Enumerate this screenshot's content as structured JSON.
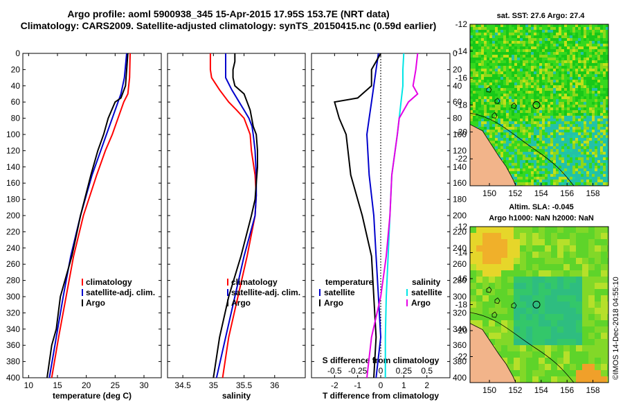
{
  "title": {
    "line1": "Argo profile: aoml 5900938_345 15-Apr-2015 17.95S 153.7E (NRT data)",
    "line2": "Climatology: CARS2009. Satellite-adjusted climatology: synTS_20150415.nc (0.59d earlier)"
  },
  "colors": {
    "climatology": "#ff0000",
    "satellite": "#0000cc",
    "argo": "#000000",
    "t_sat": "#00e5e5",
    "s_argo": "#e500e5",
    "s_sat": "#00e5e5"
  },
  "depth_ticks": [
    "0",
    "20",
    "40",
    "60",
    "80",
    "100",
    "120",
    "140",
    "160",
    "180",
    "200",
    "220",
    "240",
    "260",
    "280",
    "300",
    "320",
    "340",
    "360",
    "380",
    "400"
  ],
  "chart_data": [
    {
      "type": "line",
      "name": "temperature",
      "xlabel": "temperature (deg C)",
      "ylabel": "",
      "xlim": [
        9,
        33
      ],
      "ylim": [
        400,
        0
      ],
      "xticks": [
        "10",
        "15",
        "20",
        "25",
        "30"
      ],
      "legend": [
        "climatology",
        "satellite-adj. clim.",
        "Argo"
      ],
      "series": [
        {
          "name": "climatology",
          "depth": [
            0,
            30,
            50,
            60,
            80,
            100,
            120,
            150,
            200,
            250,
            300,
            350,
            400
          ],
          "values": [
            27.6,
            27.5,
            27.2,
            26.5,
            25.5,
            24.5,
            23.3,
            21.8,
            19.5,
            17.8,
            16.5,
            15.2,
            14.0
          ]
        },
        {
          "name": "satellite-adj. clim.",
          "depth": [
            0,
            30,
            50,
            60,
            80,
            100,
            120,
            150,
            200,
            250,
            300,
            350,
            400
          ],
          "values": [
            27.0,
            26.6,
            26.0,
            25.5,
            24.5,
            23.5,
            22.5,
            21.0,
            19.0,
            17.3,
            16.0,
            14.8,
            13.6
          ]
        },
        {
          "name": "Argo",
          "depth": [
            0,
            20,
            40,
            55,
            60,
            80,
            100,
            120,
            150,
            200,
            250,
            300,
            340,
            360,
            400
          ],
          "values": [
            27.2,
            27.0,
            26.8,
            26.0,
            25.0,
            23.8,
            23.0,
            22.0,
            20.8,
            19.0,
            17.5,
            15.5,
            14.8,
            14.0,
            13.2
          ]
        }
      ]
    },
    {
      "type": "line",
      "name": "salinity",
      "xlabel": "salinity",
      "ylabel": "",
      "xlim": [
        34.25,
        36.5
      ],
      "ylim": [
        400,
        0
      ],
      "xticks": [
        "34.5",
        "35",
        "35.5",
        "36"
      ],
      "legend": [
        "climatology",
        "satellite-adj. clim.",
        "Argo"
      ],
      "series": [
        {
          "name": "climatology",
          "depth": [
            0,
            20,
            30,
            45,
            60,
            70,
            80,
            90,
            100,
            120,
            150,
            175,
            200,
            250,
            300,
            350,
            400
          ],
          "values": [
            34.95,
            34.95,
            34.97,
            35.1,
            35.25,
            35.38,
            35.5,
            35.55,
            35.6,
            35.62,
            35.68,
            35.7,
            35.68,
            35.55,
            35.4,
            35.25,
            35.15
          ]
        },
        {
          "name": "satellite-adj. clim.",
          "depth": [
            0,
            20,
            30,
            45,
            60,
            70,
            80,
            90,
            100,
            120,
            150,
            175,
            200,
            250,
            300,
            350,
            400
          ],
          "values": [
            35.2,
            35.2,
            35.2,
            35.3,
            35.42,
            35.5,
            35.58,
            35.63,
            35.65,
            35.68,
            35.7,
            35.7,
            35.68,
            35.5,
            35.35,
            35.2,
            35.05
          ]
        },
        {
          "name": "Argo",
          "depth": [
            0,
            10,
            20,
            30,
            40,
            50,
            60,
            70,
            90,
            100,
            120,
            140,
            160,
            180,
            200,
            250,
            300,
            350,
            400
          ],
          "values": [
            35.35,
            35.35,
            35.32,
            35.32,
            35.35,
            35.5,
            35.55,
            35.6,
            35.65,
            35.7,
            35.72,
            35.72,
            35.7,
            35.68,
            35.62,
            35.45,
            35.25,
            35.1,
            35.0
          ]
        }
      ]
    },
    {
      "type": "line",
      "name": "difference",
      "xlabel": "T difference from climatology",
      "x2label": "S difference from climatology",
      "xlim": [
        -3.0,
        3.0
      ],
      "ylim": [
        400,
        0
      ],
      "xticks": [
        "-2",
        "-1",
        "0",
        "1",
        "2"
      ],
      "x2ticks": [
        "-0.5",
        "-0.25",
        "0",
        "0.25",
        "0.5"
      ],
      "legend_temperature_title": "temperature",
      "legend_salinity_title": "salinity",
      "legend": [
        "satellite",
        "Argo",
        "satellite",
        "Argo"
      ],
      "series": [
        {
          "name": "T satellite",
          "depth": [
            0,
            20,
            40,
            60,
            80,
            100,
            150,
            200,
            250,
            300,
            350,
            400
          ],
          "values": [
            -0.1,
            -0.2,
            -0.3,
            -0.4,
            -0.5,
            -0.6,
            -0.5,
            -0.3,
            -0.2,
            -0.1,
            0.0,
            -0.2
          ]
        },
        {
          "name": "T Argo",
          "depth": [
            0,
            20,
            40,
            55,
            60,
            80,
            100,
            150,
            200,
            250,
            300,
            350,
            400
          ],
          "values": [
            0.0,
            -0.4,
            -0.4,
            -1.0,
            -2.0,
            -1.8,
            -1.5,
            -1.3,
            -0.8,
            -0.4,
            -0.3,
            -0.2,
            -0.3
          ]
        },
        {
          "name": "S satellite",
          "depth": [
            0,
            20,
            40,
            60,
            80,
            100,
            150,
            200,
            250,
            300,
            350,
            400
          ],
          "values": [
            0.25,
            0.24,
            0.24,
            0.22,
            0.2,
            0.18,
            0.12,
            0.1,
            0.08,
            0.06,
            0.05,
            0.05
          ]
        },
        {
          "name": "S Argo",
          "depth": [
            0,
            20,
            40,
            50,
            60,
            80,
            100,
            150,
            200,
            250,
            300,
            350,
            400
          ],
          "values": [
            0.4,
            0.38,
            0.35,
            0.4,
            0.3,
            0.2,
            0.18,
            0.12,
            0.1,
            0.06,
            0.0,
            -0.1,
            -0.15
          ]
        }
      ]
    },
    {
      "type": "heatmap",
      "name": "sst_map",
      "title": "sat. SST: 27.6 Argo: 27.4",
      "xlim": [
        148.5,
        159.2
      ],
      "ylim": [
        -24,
        -12
      ],
      "xticks": [
        "150",
        "152",
        "154",
        "156",
        "158"
      ],
      "yticks": [
        "-12",
        "-14",
        "-16",
        "-18",
        "-20",
        "-22"
      ]
    },
    {
      "type": "heatmap",
      "name": "sla_map",
      "title1": "Altim. SLA: -0.045",
      "title2": "Argo h1000: NaN h2000: NaN",
      "xlim": [
        148.5,
        159.2
      ],
      "ylim": [
        -24,
        -12
      ],
      "xticks": [
        "150",
        "152",
        "154",
        "156",
        "158"
      ],
      "yticks": [
        "-12",
        "-14",
        "-16",
        "-18",
        "-20",
        "-22"
      ]
    }
  ],
  "copyright": "©IMOS 14-Dec-2018 04:55:10"
}
